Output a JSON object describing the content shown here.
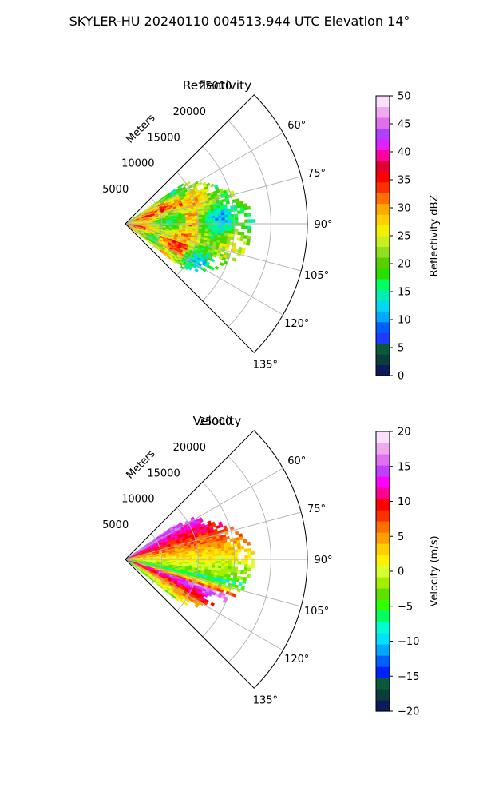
{
  "suptitle": "SKYLER-HU  20240110  004513.944 UTC Elevation 14°",
  "chart_data": [
    {
      "type": "ppi-sector",
      "title": "Reflectivity",
      "radial_label": "Meters",
      "range_rings_m": [
        5000,
        10000,
        15000,
        20000,
        25000
      ],
      "range_tick_labels": [
        "5000",
        "10000",
        "15000",
        "20000",
        "25000"
      ],
      "azimuth_range_deg": [
        45,
        135
      ],
      "azimuth_ticks_deg": [
        60,
        75,
        90,
        105,
        120,
        135
      ],
      "azimuth_tick_labels": [
        "60°",
        "75°",
        "90°",
        "105°",
        "120°",
        "135°"
      ],
      "rlim_m": [
        0,
        25000
      ],
      "grid": true,
      "data_extent": {
        "azimuth_deg": [
          55,
          128
        ],
        "max_range_m": 17500
      },
      "colorbar": {
        "label": "Reflectivity dBZ",
        "range": [
          0,
          50
        ],
        "ticks": [
          0,
          5,
          10,
          15,
          20,
          25,
          30,
          35,
          40,
          45,
          50
        ],
        "tick_labels": [
          "0",
          "5",
          "10",
          "15",
          "20",
          "25",
          "30",
          "35",
          "40",
          "45",
          "50"
        ],
        "colors": [
          "#0d1a5a",
          "#0b3d3d",
          "#0a5a3a",
          "#1d3cff",
          "#0060ff",
          "#00a8ff",
          "#00d8f0",
          "#00f0b0",
          "#00ff60",
          "#28e000",
          "#58d000",
          "#90e020",
          "#c8f020",
          "#f0f000",
          "#ffd000",
          "#ffa800",
          "#ff7000",
          "#ff3000",
          "#ff0000",
          "#e00030",
          "#ff00a0",
          "#e020ff",
          "#b040ff",
          "#e070e8",
          "#f0a8f0",
          "#fae0fa"
        ]
      }
    },
    {
      "type": "ppi-sector",
      "title": "Velocity",
      "radial_label": "Meters",
      "range_rings_m": [
        5000,
        10000,
        15000,
        20000,
        25000
      ],
      "range_tick_labels": [
        "5000",
        "10000",
        "15000",
        "20000",
        "25000"
      ],
      "azimuth_range_deg": [
        45,
        135
      ],
      "azimuth_ticks_deg": [
        60,
        75,
        90,
        105,
        120,
        135
      ],
      "azimuth_tick_labels": [
        "60°",
        "75°",
        "90°",
        "105°",
        "120°",
        "135°"
      ],
      "rlim_m": [
        0,
        25000
      ],
      "grid": true,
      "data_extent": {
        "azimuth_deg": [
          55,
          128
        ],
        "max_range_m": 17500
      },
      "colorbar": {
        "label": "Velocity (m/s)",
        "range": [
          -20,
          20
        ],
        "ticks": [
          -20,
          -15,
          -10,
          -5,
          0,
          5,
          10,
          15,
          20
        ],
        "tick_labels": [
          "−20",
          "−15",
          "−10",
          "−5",
          "0",
          "5",
          "10",
          "15",
          "20"
        ],
        "colors": [
          "#0d1a5a",
          "#0b3d3d",
          "#0a5a3a",
          "#0020ff",
          "#0060ff",
          "#00a8ff",
          "#00e0ff",
          "#00ffd0",
          "#00ff60",
          "#30ff00",
          "#60e000",
          "#a0f000",
          "#d8ff30",
          "#fff000",
          "#ffd000",
          "#ffa000",
          "#ff7000",
          "#ff3000",
          "#ff0000",
          "#ff0090",
          "#ff00ff",
          "#c040ff",
          "#e070f0",
          "#f0a8f0",
          "#fae0fa"
        ]
      }
    }
  ]
}
